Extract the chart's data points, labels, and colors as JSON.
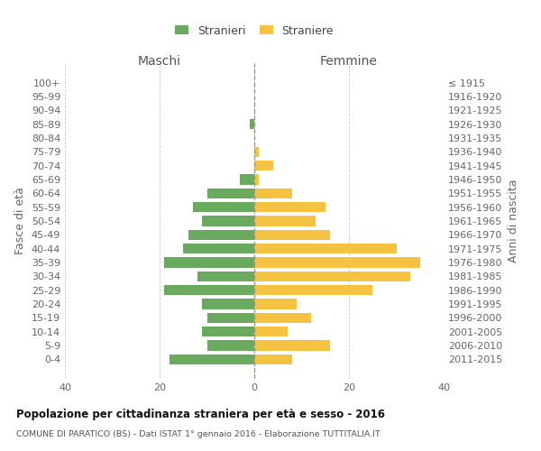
{
  "age_groups": [
    "0-4",
    "5-9",
    "10-14",
    "15-19",
    "20-24",
    "25-29",
    "30-34",
    "35-39",
    "40-44",
    "45-49",
    "50-54",
    "55-59",
    "60-64",
    "65-69",
    "70-74",
    "75-79",
    "80-84",
    "85-89",
    "90-94",
    "95-99",
    "100+"
  ],
  "birth_years": [
    "2011-2015",
    "2006-2010",
    "2001-2005",
    "1996-2000",
    "1991-1995",
    "1986-1990",
    "1981-1985",
    "1976-1980",
    "1971-1975",
    "1966-1970",
    "1961-1965",
    "1956-1960",
    "1951-1955",
    "1946-1950",
    "1941-1945",
    "1936-1940",
    "1931-1935",
    "1926-1930",
    "1921-1925",
    "1916-1920",
    "≤ 1915"
  ],
  "maschi": [
    18,
    10,
    11,
    10,
    11,
    19,
    12,
    19,
    15,
    14,
    11,
    13,
    10,
    3,
    0,
    0,
    0,
    1,
    0,
    0,
    0
  ],
  "femmine": [
    8,
    16,
    7,
    12,
    9,
    25,
    33,
    35,
    30,
    16,
    13,
    15,
    8,
    1,
    4,
    1,
    0,
    0,
    0,
    0,
    0
  ],
  "color_maschi": "#6aaa5e",
  "color_femmine": "#f5c242",
  "xlim": 40,
  "title": "Popolazione per cittadinanza straniera per età e sesso - 2016",
  "subtitle": "COMUNE DI PARATICO (BS) - Dati ISTAT 1° gennaio 2016 - Elaborazione TUTTITALIA.IT",
  "ylabel_left": "Fasce di età",
  "ylabel_right": "Anni di nascita",
  "label_maschi": "Stranieri",
  "label_femmine": "Straniere",
  "xlabel_maschi": "Maschi",
  "xlabel_femmine": "Femmine",
  "background_color": "#ffffff",
  "grid_color": "#cccccc"
}
